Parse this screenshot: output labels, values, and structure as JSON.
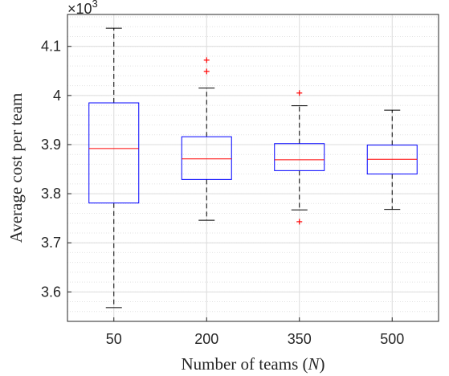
{
  "chart_data": {
    "type": "boxplot",
    "xlabel_text": "Number of teams ",
    "xlabel_var": "N",
    "ylabel": "Average cost per team",
    "y_exponent": {
      "base": "×10",
      "power": "3"
    },
    "ylim": [
      3.54,
      4.165
    ],
    "y_ticks": [
      3.6,
      3.7,
      3.8,
      3.9,
      4.0,
      4.1
    ],
    "y_tick_labels": [
      "3.6",
      "3.7",
      "3.8",
      "3.9",
      "4",
      "4.1"
    ],
    "categories": [
      "50",
      "200",
      "350",
      "500"
    ],
    "grid": true,
    "minor_grid": true,
    "colors": {
      "box": "#0000ff",
      "median": "#ff0000",
      "whisker": "#000000",
      "outlier": "#ff0000",
      "axis": "#262626",
      "grid": "#dcdcdc"
    },
    "boxes": [
      {
        "category": "50",
        "whisker_low": 3.568,
        "q1": 3.781,
        "median": 3.892,
        "q3": 3.985,
        "whisker_high": 4.137,
        "outliers": []
      },
      {
        "category": "200",
        "whisker_low": 3.746,
        "q1": 3.829,
        "median": 3.871,
        "q3": 3.916,
        "whisker_high": 4.015,
        "outliers": [
          4.049,
          4.072
        ]
      },
      {
        "category": "350",
        "whisker_low": 3.767,
        "q1": 3.847,
        "median": 3.869,
        "q3": 3.902,
        "whisker_high": 3.979,
        "outliers": [
          4.005,
          3.743
        ]
      },
      {
        "category": "500",
        "whisker_low": 3.768,
        "q1": 3.84,
        "median": 3.87,
        "q3": 3.899,
        "whisker_high": 3.97,
        "outliers": []
      }
    ]
  }
}
